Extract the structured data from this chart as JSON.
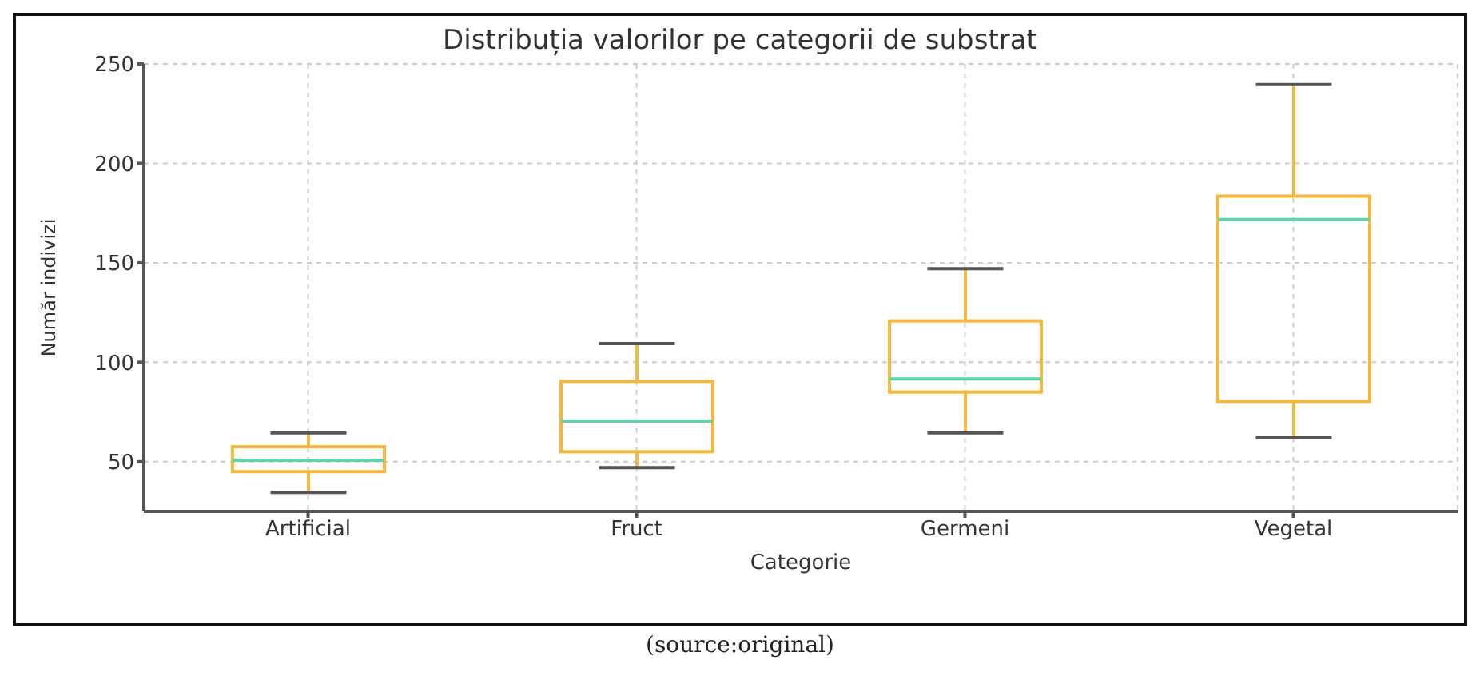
{
  "chart_data": {
    "type": "box",
    "title": "Distribuția valorilor pe categorii de substrat",
    "xlabel": "Categorie",
    "ylabel": "Număr indivizi",
    "categories": [
      "Artificial",
      "Fruct",
      "Germeni",
      "Vegetal"
    ],
    "series": [
      {
        "color": "#f5b83d",
        "boxes": [
          {
            "low": 34.5,
            "q1": 45,
            "median": 50.7,
            "q3": 57.5,
            "high": 64.5
          },
          {
            "low": 47,
            "q1": 55,
            "median": 70.4,
            "q3": 90.4,
            "high": 109.4
          },
          {
            "low": 64.5,
            "q1": 85,
            "median": 91.6,
            "q3": 120.8,
            "high": 147
          },
          {
            "low": 62,
            "q1": 80.3,
            "median": 171.8,
            "q3": 183.5,
            "high": 239.7
          }
        ]
      }
    ],
    "ylim": [
      25,
      250
    ],
    "yticks": [
      50,
      100,
      150,
      200,
      250
    ],
    "grid": true,
    "legend": false,
    "annotations": [
      "(source:original)"
    ]
  }
}
